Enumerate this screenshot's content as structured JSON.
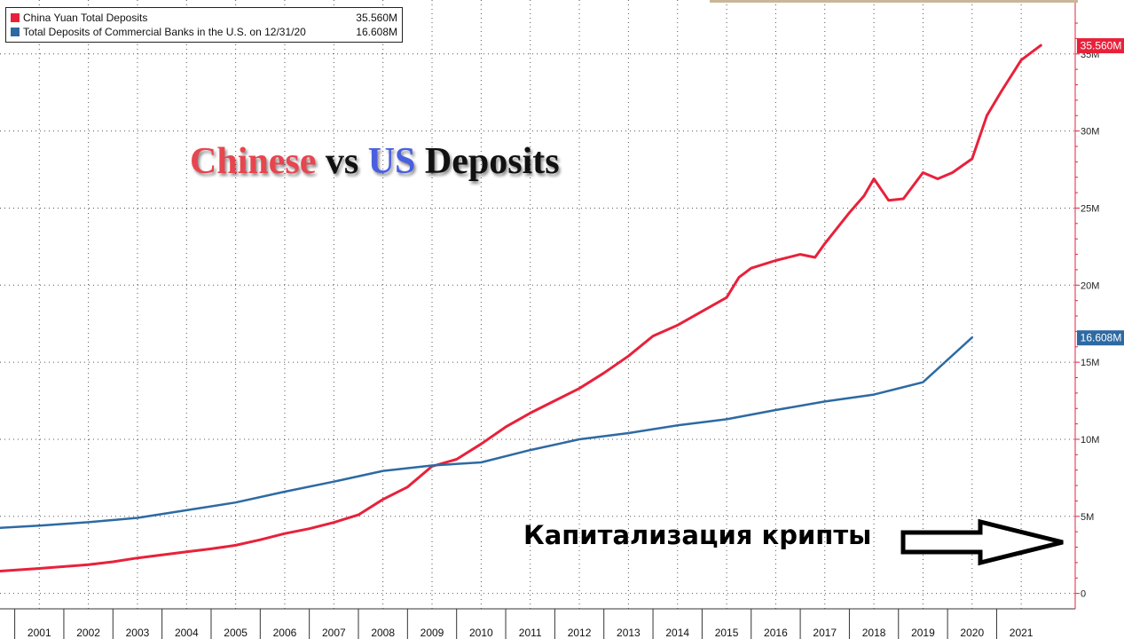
{
  "legend": {
    "items": [
      {
        "name": "China Yuan Total Deposits",
        "value": "35.560M",
        "color": "#e8213b"
      },
      {
        "name": "Total Deposits of Commercial Banks in the U.S. on 12/31/20",
        "value": "16.608M",
        "color": "#2d6aa3"
      }
    ]
  },
  "headline": {
    "part1": "Chinese",
    "part1_color": "#e8454f",
    "part2": " vs ",
    "part2_color": "#111111",
    "part3": "US",
    "part3_color": "#4a5fe0",
    "part4": " Deposits",
    "part4_color": "#111111"
  },
  "annotation": {
    "text": "Капитализация крипты",
    "arrow_icon": "right-arrow-icon"
  },
  "chart_data": {
    "type": "line",
    "title": "",
    "xlabel": "",
    "ylabel": "",
    "x_ticks": [
      "2001",
      "2002",
      "2003",
      "2004",
      "2005",
      "2006",
      "2007",
      "2008",
      "2009",
      "2010",
      "2011",
      "2012",
      "2013",
      "2014",
      "2015",
      "2016",
      "2017",
      "2018",
      "2019",
      "2020",
      "2021"
    ],
    "y_ticks": [
      "0",
      "5M",
      "10M",
      "15M",
      "20M",
      "25M",
      "30M",
      "35M"
    ],
    "ylim": [
      -1000000,
      38500000
    ],
    "xlim": [
      2000.2,
      2022.1
    ],
    "y_axis_side": "right",
    "grid": true,
    "legend_position": "top-left",
    "series": [
      {
        "name": "China Yuan Total Deposits",
        "color": "#e8213b",
        "last_value_label": "35.560M",
        "points": [
          [
            2000.2,
            1450000
          ],
          [
            2001.0,
            1620000
          ],
          [
            2001.5,
            1740000
          ],
          [
            2002.0,
            1860000
          ],
          [
            2002.5,
            2050000
          ],
          [
            2003.0,
            2300000
          ],
          [
            2003.5,
            2500000
          ],
          [
            2004.0,
            2700000
          ],
          [
            2004.5,
            2890000
          ],
          [
            2005.0,
            3120000
          ],
          [
            2005.5,
            3480000
          ],
          [
            2006.0,
            3880000
          ],
          [
            2006.5,
            4200000
          ],
          [
            2007.0,
            4600000
          ],
          [
            2007.5,
            5100000
          ],
          [
            2008.0,
            6100000
          ],
          [
            2008.5,
            6900000
          ],
          [
            2009.0,
            8250000
          ],
          [
            2009.5,
            8700000
          ],
          [
            2010.0,
            9700000
          ],
          [
            2010.5,
            10800000
          ],
          [
            2011.0,
            11700000
          ],
          [
            2011.5,
            12500000
          ],
          [
            2012.0,
            13300000
          ],
          [
            2012.5,
            14300000
          ],
          [
            2013.0,
            15400000
          ],
          [
            2013.5,
            16700000
          ],
          [
            2014.0,
            17400000
          ],
          [
            2014.5,
            18300000
          ],
          [
            2015.0,
            19200000
          ],
          [
            2015.25,
            20500000
          ],
          [
            2015.5,
            21100000
          ],
          [
            2016.0,
            21600000
          ],
          [
            2016.5,
            22000000
          ],
          [
            2016.8,
            21800000
          ],
          [
            2017.0,
            22700000
          ],
          [
            2017.5,
            24700000
          ],
          [
            2017.8,
            25800000
          ],
          [
            2018.0,
            26900000
          ],
          [
            2018.3,
            25500000
          ],
          [
            2018.6,
            25600000
          ],
          [
            2019.0,
            27300000
          ],
          [
            2019.3,
            26900000
          ],
          [
            2019.6,
            27300000
          ],
          [
            2020.0,
            28200000
          ],
          [
            2020.3,
            31000000
          ],
          [
            2020.6,
            32600000
          ],
          [
            2021.0,
            34600000
          ],
          [
            2021.4,
            35560000
          ]
        ]
      },
      {
        "name": "Total Deposits of Commercial Banks in the U.S. on 12/31/20",
        "color": "#2d6aa3",
        "last_value_label": "16.608M",
        "points": [
          [
            2000.2,
            4250000
          ],
          [
            2001.0,
            4400000
          ],
          [
            2002.0,
            4620000
          ],
          [
            2003.0,
            4900000
          ],
          [
            2004.0,
            5400000
          ],
          [
            2005.0,
            5900000
          ],
          [
            2006.0,
            6600000
          ],
          [
            2007.0,
            7250000
          ],
          [
            2008.0,
            7950000
          ],
          [
            2009.0,
            8300000
          ],
          [
            2010.0,
            8500000
          ],
          [
            2011.0,
            9300000
          ],
          [
            2012.0,
            10000000
          ],
          [
            2013.0,
            10400000
          ],
          [
            2014.0,
            10900000
          ],
          [
            2015.0,
            11300000
          ],
          [
            2016.0,
            11900000
          ],
          [
            2017.0,
            12450000
          ],
          [
            2018.0,
            12900000
          ],
          [
            2019.0,
            13700000
          ],
          [
            2020.0,
            16608000
          ]
        ]
      }
    ]
  }
}
